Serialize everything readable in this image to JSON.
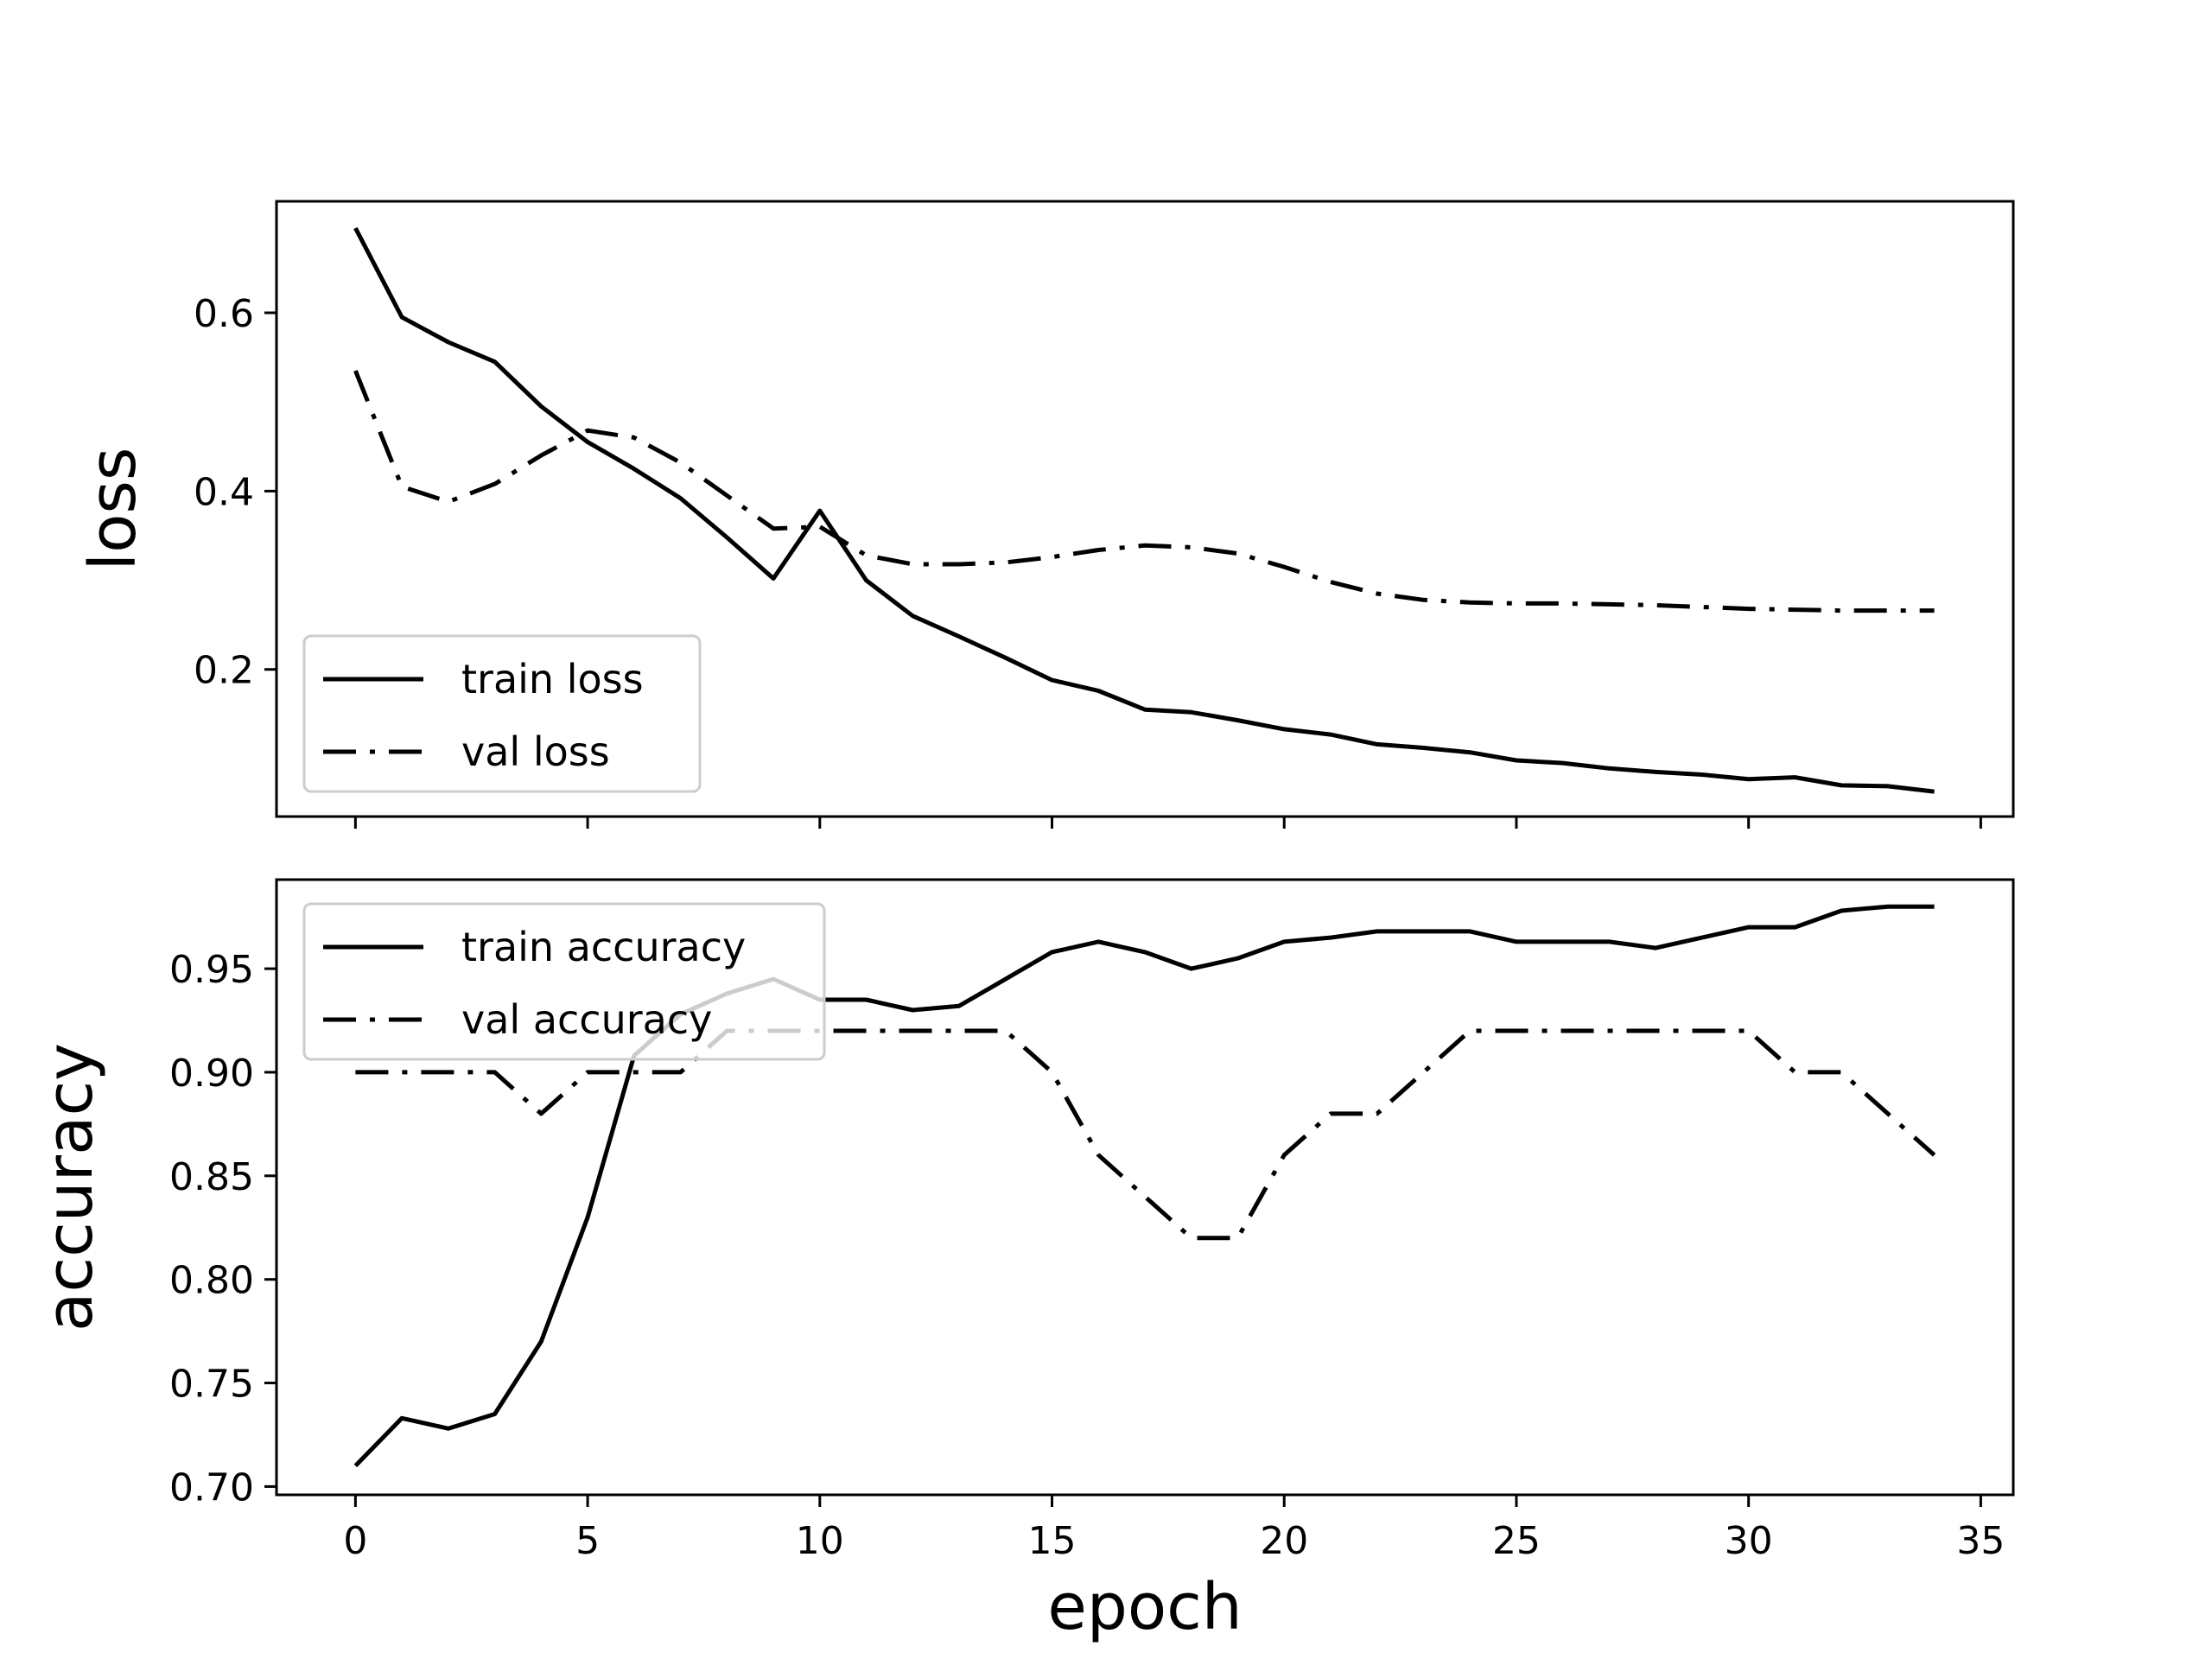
{
  "chart_data": [
    {
      "type": "line",
      "ylabel": "loss",
      "xlim": [
        -1.7,
        35.7
      ],
      "ylim": [
        0.035,
        0.725
      ],
      "yticks": [
        {
          "value": 0.2,
          "label": "0.2"
        },
        {
          "value": 0.4,
          "label": "0.4"
        },
        {
          "value": 0.6,
          "label": "0.6"
        }
      ],
      "xticks": [
        0,
        5,
        10,
        15,
        20,
        25,
        30,
        35
      ],
      "x_tick_labels_visible": false,
      "legend_position": "lower-left",
      "grid": false,
      "x": [
        0,
        1,
        2,
        3,
        4,
        5,
        6,
        7,
        8,
        9,
        10,
        11,
        12,
        13,
        14,
        15,
        16,
        17,
        18,
        19,
        20,
        21,
        22,
        23,
        24,
        25,
        26,
        27,
        28,
        29,
        30,
        31,
        32,
        33,
        34
      ],
      "series": [
        {
          "name": "train loss",
          "style": "solid",
          "color": "#000000",
          "values": [
            0.695,
            0.595,
            0.567,
            0.545,
            0.495,
            0.455,
            0.425,
            0.392,
            0.348,
            0.302,
            0.378,
            0.3,
            0.26,
            0.237,
            0.213,
            0.188,
            0.176,
            0.155,
            0.152,
            0.143,
            0.133,
            0.127,
            0.116,
            0.112,
            0.107,
            0.098,
            0.095,
            0.089,
            0.085,
            0.082,
            0.077,
            0.079,
            0.07,
            0.069,
            0.063
          ]
        },
        {
          "name": "val loss",
          "style": "dashdot",
          "color": "#000000",
          "values": [
            0.535,
            0.405,
            0.388,
            0.408,
            0.44,
            0.468,
            0.46,
            0.432,
            0.395,
            0.358,
            0.36,
            0.328,
            0.318,
            0.318,
            0.32,
            0.326,
            0.334,
            0.339,
            0.337,
            0.33,
            0.315,
            0.298,
            0.285,
            0.278,
            0.275,
            0.274,
            0.274,
            0.273,
            0.272,
            0.27,
            0.268,
            0.267,
            0.266,
            0.266,
            0.266
          ]
        }
      ]
    },
    {
      "type": "line",
      "ylabel": "accuracy",
      "xlabel": "epoch",
      "xlim": [
        -1.7,
        35.7
      ],
      "ylim": [
        0.696,
        0.993
      ],
      "yticks": [
        {
          "value": 0.7,
          "label": "0.70"
        },
        {
          "value": 0.75,
          "label": "0.75"
        },
        {
          "value": 0.8,
          "label": "0.80"
        },
        {
          "value": 0.85,
          "label": "0.85"
        },
        {
          "value": 0.9,
          "label": "0.90"
        },
        {
          "value": 0.95,
          "label": "0.95"
        }
      ],
      "xticks": [
        {
          "value": 0,
          "label": "0"
        },
        {
          "value": 5,
          "label": "5"
        },
        {
          "value": 10,
          "label": "10"
        },
        {
          "value": 15,
          "label": "15"
        },
        {
          "value": 20,
          "label": "20"
        },
        {
          "value": 25,
          "label": "25"
        },
        {
          "value": 30,
          "label": "30"
        },
        {
          "value": 35,
          "label": "35"
        }
      ],
      "legend_position": "upper-left",
      "grid": false,
      "x": [
        0,
        1,
        2,
        3,
        4,
        5,
        6,
        7,
        8,
        9,
        10,
        11,
        12,
        13,
        14,
        15,
        16,
        17,
        18,
        19,
        20,
        21,
        22,
        23,
        24,
        25,
        26,
        27,
        28,
        29,
        30,
        31,
        32,
        33,
        34
      ],
      "series": [
        {
          "name": "train accuracy",
          "style": "solid",
          "color": "#000000",
          "values": [
            0.71,
            0.733,
            0.728,
            0.735,
            0.77,
            0.83,
            0.908,
            0.928,
            0.938,
            0.945,
            0.935,
            0.935,
            0.93,
            0.932,
            0.945,
            0.958,
            0.963,
            0.958,
            0.95,
            0.955,
            0.963,
            0.965,
            0.968,
            0.968,
            0.968,
            0.963,
            0.963,
            0.963,
            0.96,
            0.965,
            0.97,
            0.97,
            0.978,
            0.98,
            0.98
          ]
        },
        {
          "name": "val accuracy",
          "style": "dashdot",
          "color": "#000000",
          "values": [
            0.9,
            0.9,
            0.9,
            0.9,
            0.88,
            0.9,
            0.9,
            0.9,
            0.92,
            0.92,
            0.92,
            0.92,
            0.92,
            0.92,
            0.92,
            0.9,
            0.86,
            0.84,
            0.82,
            0.82,
            0.86,
            0.88,
            0.88,
            0.9,
            0.92,
            0.92,
            0.92,
            0.92,
            0.92,
            0.92,
            0.92,
            0.9,
            0.9,
            0.88,
            0.86
          ]
        }
      ]
    }
  ]
}
